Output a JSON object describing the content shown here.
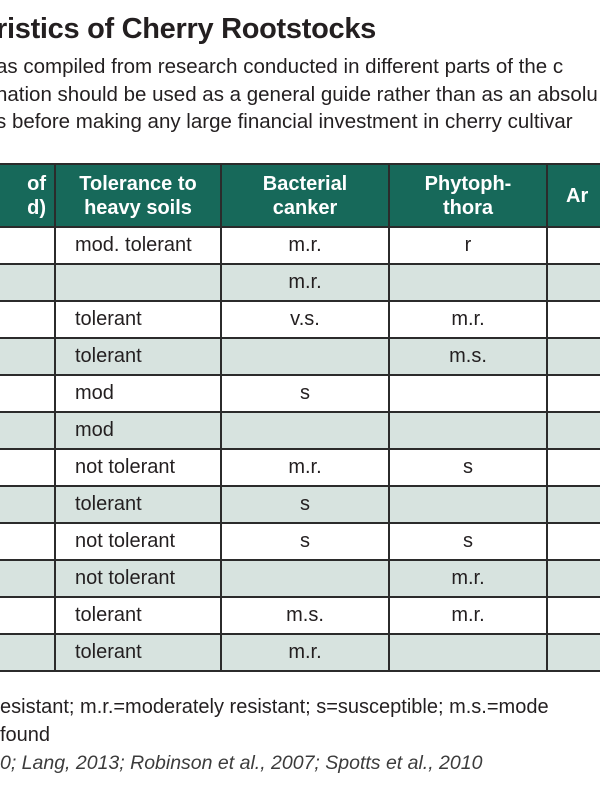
{
  "page": {
    "title_fragment": "ristics of Cherry Rootstocks",
    "intro_lines": [
      "as compiled from research conducted in different parts of the c",
      "nation should be used as a general guide rather than as an absolu",
      "s before making any large financial investment in cherry cultivar"
    ]
  },
  "table": {
    "header_cols": [
      {
        "line1": "of",
        "line2": "d)"
      },
      {
        "line1": "Tolerance to",
        "line2": "heavy soils"
      },
      {
        "line1": "Bacterial",
        "line2": "canker"
      },
      {
        "line1": "Phytoph-",
        "line2": "thora"
      },
      {
        "line1": "Ar",
        "line2": ""
      }
    ],
    "rows": [
      {
        "cells": [
          "",
          "mod. tolerant",
          "m.r.",
          "r",
          ""
        ]
      },
      {
        "cells": [
          "",
          "",
          "m.r.",
          "",
          ""
        ]
      },
      {
        "cells": [
          "",
          "tolerant",
          "v.s.",
          "m.r.",
          ""
        ]
      },
      {
        "cells": [
          "",
          "tolerant",
          "",
          "m.s.",
          ""
        ]
      },
      {
        "cells": [
          "",
          "mod",
          "s",
          "",
          ""
        ]
      },
      {
        "cells": [
          "",
          "mod",
          "",
          "",
          ""
        ]
      },
      {
        "cells": [
          "",
          "not tolerant",
          "m.r.",
          "s",
          ""
        ]
      },
      {
        "cells": [
          "",
          "tolerant",
          "s",
          "",
          ""
        ]
      },
      {
        "cells": [
          "",
          "not tolerant",
          "s",
          "s",
          ""
        ]
      },
      {
        "cells": [
          "",
          "not tolerant",
          "",
          "m.r.",
          ""
        ]
      },
      {
        "cells": [
          "",
          "tolerant",
          "m.s.",
          "m.r.",
          ""
        ]
      },
      {
        "cells": [
          "",
          "tolerant",
          "m.r.",
          "",
          ""
        ]
      }
    ]
  },
  "footnotes": {
    "legend": "esistant; m.r.=moderately resistant; s=susceptible; m.s.=mode",
    "blank_note": "found",
    "references": "0; Lang, 2013; Robinson et al., 2007; Spotts et al., 2010"
  },
  "colors": {
    "header_bg": "#17695a",
    "row_alt_bg": "#d7e3df",
    "border": "#2b2b2b",
    "text": "#231f20"
  }
}
